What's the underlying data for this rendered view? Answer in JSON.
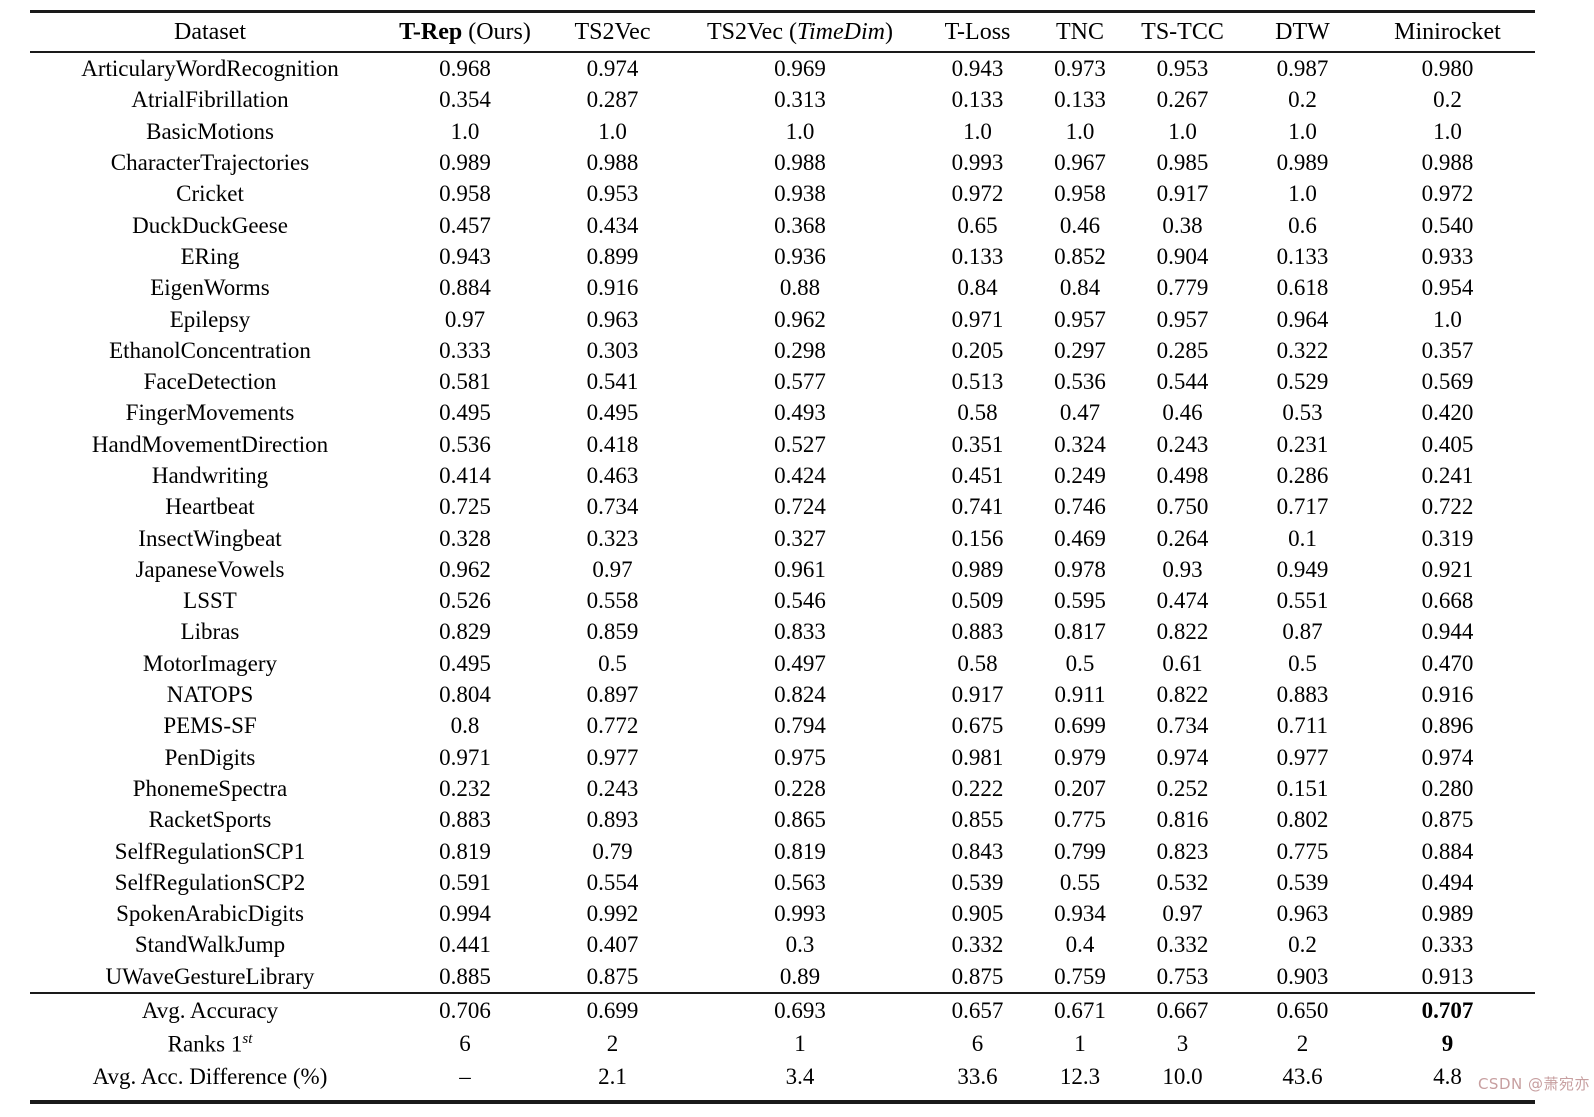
{
  "header": {
    "dataset": "Dataset",
    "trep_main": "T-Rep",
    "trep_suffix": " (Ours)",
    "ts2vec": "TS2Vec",
    "timedim_prefix": "TS2Vec (",
    "timedim_italic": "TimeDim",
    "timedim_suffix": ")",
    "tloss": "T-Loss",
    "tnc": "TNC",
    "tstcc": "TS-TCC",
    "dtw": "DTW",
    "minirocket": "Minirocket"
  },
  "rows": [
    {
      "dataset": "ArticularyWordRecognition",
      "values": [
        "0.968",
        "0.974",
        "0.969",
        "0.943",
        "0.973",
        "0.953",
        "0.987",
        "0.980"
      ]
    },
    {
      "dataset": "AtrialFibrillation",
      "values": [
        "0.354",
        "0.287",
        "0.313",
        "0.133",
        "0.133",
        "0.267",
        "0.2",
        "0.2"
      ]
    },
    {
      "dataset": "BasicMotions",
      "values": [
        "1.0",
        "1.0",
        "1.0",
        "1.0",
        "1.0",
        "1.0",
        "1.0",
        "1.0"
      ]
    },
    {
      "dataset": "CharacterTrajectories",
      "values": [
        "0.989",
        "0.988",
        "0.988",
        "0.993",
        "0.967",
        "0.985",
        "0.989",
        "0.988"
      ]
    },
    {
      "dataset": "Cricket",
      "values": [
        "0.958",
        "0.953",
        "0.938",
        "0.972",
        "0.958",
        "0.917",
        "1.0",
        "0.972"
      ]
    },
    {
      "dataset": "DuckDuckGeese",
      "values": [
        "0.457",
        "0.434",
        "0.368",
        "0.65",
        "0.46",
        "0.38",
        "0.6",
        "0.540"
      ]
    },
    {
      "dataset": "ERing",
      "values": [
        "0.943",
        "0.899",
        "0.936",
        "0.133",
        "0.852",
        "0.904",
        "0.133",
        "0.933"
      ]
    },
    {
      "dataset": "EigenWorms",
      "values": [
        "0.884",
        "0.916",
        "0.88",
        "0.84",
        "0.84",
        "0.779",
        "0.618",
        "0.954"
      ]
    },
    {
      "dataset": "Epilepsy",
      "values": [
        "0.97",
        "0.963",
        "0.962",
        "0.971",
        "0.957",
        "0.957",
        "0.964",
        "1.0"
      ]
    },
    {
      "dataset": "EthanolConcentration",
      "values": [
        "0.333",
        "0.303",
        "0.298",
        "0.205",
        "0.297",
        "0.285",
        "0.322",
        "0.357"
      ]
    },
    {
      "dataset": "FaceDetection",
      "values": [
        "0.581",
        "0.541",
        "0.577",
        "0.513",
        "0.536",
        "0.544",
        "0.529",
        "0.569"
      ]
    },
    {
      "dataset": "FingerMovements",
      "values": [
        "0.495",
        "0.495",
        "0.493",
        "0.58",
        "0.47",
        "0.46",
        "0.53",
        "0.420"
      ]
    },
    {
      "dataset": "HandMovementDirection",
      "values": [
        "0.536",
        "0.418",
        "0.527",
        "0.351",
        "0.324",
        "0.243",
        "0.231",
        "0.405"
      ]
    },
    {
      "dataset": "Handwriting",
      "values": [
        "0.414",
        "0.463",
        "0.424",
        "0.451",
        "0.249",
        "0.498",
        "0.286",
        "0.241"
      ]
    },
    {
      "dataset": "Heartbeat",
      "values": [
        "0.725",
        "0.734",
        "0.724",
        "0.741",
        "0.746",
        "0.750",
        "0.717",
        "0.722"
      ]
    },
    {
      "dataset": "InsectWingbeat",
      "values": [
        "0.328",
        "0.323",
        "0.327",
        "0.156",
        "0.469",
        "0.264",
        "0.1",
        "0.319"
      ]
    },
    {
      "dataset": "JapaneseVowels",
      "values": [
        "0.962",
        "0.97",
        "0.961",
        "0.989",
        "0.978",
        "0.93",
        "0.949",
        "0.921"
      ]
    },
    {
      "dataset": "LSST",
      "values": [
        "0.526",
        "0.558",
        "0.546",
        "0.509",
        "0.595",
        "0.474",
        "0.551",
        "0.668"
      ]
    },
    {
      "dataset": "Libras",
      "values": [
        "0.829",
        "0.859",
        "0.833",
        "0.883",
        "0.817",
        "0.822",
        "0.87",
        "0.944"
      ]
    },
    {
      "dataset": "MotorImagery",
      "values": [
        "0.495",
        "0.5",
        "0.497",
        "0.58",
        "0.5",
        "0.61",
        "0.5",
        "0.470"
      ]
    },
    {
      "dataset": "NATOPS",
      "values": [
        "0.804",
        "0.897",
        "0.824",
        "0.917",
        "0.911",
        "0.822",
        "0.883",
        "0.916"
      ]
    },
    {
      "dataset": "PEMS-SF",
      "values": [
        "0.8",
        "0.772",
        "0.794",
        "0.675",
        "0.699",
        "0.734",
        "0.711",
        "0.896"
      ]
    },
    {
      "dataset": "PenDigits",
      "values": [
        "0.971",
        "0.977",
        "0.975",
        "0.981",
        "0.979",
        "0.974",
        "0.977",
        "0.974"
      ]
    },
    {
      "dataset": "PhonemeSpectra",
      "values": [
        "0.232",
        "0.243",
        "0.228",
        "0.222",
        "0.207",
        "0.252",
        "0.151",
        "0.280"
      ]
    },
    {
      "dataset": "RacketSports",
      "values": [
        "0.883",
        "0.893",
        "0.865",
        "0.855",
        "0.775",
        "0.816",
        "0.802",
        "0.875"
      ]
    },
    {
      "dataset": "SelfRegulationSCP1",
      "values": [
        "0.819",
        "0.79",
        "0.819",
        "0.843",
        "0.799",
        "0.823",
        "0.775",
        "0.884"
      ]
    },
    {
      "dataset": "SelfRegulationSCP2",
      "values": [
        "0.591",
        "0.554",
        "0.563",
        "0.539",
        "0.55",
        "0.532",
        "0.539",
        "0.494"
      ]
    },
    {
      "dataset": "SpokenArabicDigits",
      "values": [
        "0.994",
        "0.992",
        "0.993",
        "0.905",
        "0.934",
        "0.97",
        "0.963",
        "0.989"
      ]
    },
    {
      "dataset": "StandWalkJump",
      "values": [
        "0.441",
        "0.407",
        "0.3",
        "0.332",
        "0.4",
        "0.332",
        "0.2",
        "0.333"
      ]
    },
    {
      "dataset": "UWaveGestureLibrary",
      "values": [
        "0.885",
        "0.875",
        "0.89",
        "0.875",
        "0.759",
        "0.753",
        "0.903",
        "0.913"
      ]
    }
  ],
  "footer_rows": [
    {
      "id": "avg-accuracy",
      "label_main": "Avg. Accuracy",
      "label_sup": "",
      "values": [
        "0.706",
        "0.699",
        "0.693",
        "0.657",
        "0.671",
        "0.667",
        "0.650",
        "0.707"
      ],
      "bold": [
        7
      ]
    },
    {
      "id": "ranks-first",
      "label_main": "Ranks 1",
      "label_sup": "st",
      "values": [
        "6",
        "2",
        "1",
        "6",
        "1",
        "3",
        "2",
        "9"
      ],
      "bold": [
        7
      ]
    },
    {
      "id": "avg-diff",
      "label_main": "Avg. Acc. Difference (%)",
      "label_sup": "",
      "values": [
        "–",
        "2.1",
        "3.4",
        "33.6",
        "12.3",
        "10.0",
        "43.6",
        "4.8"
      ],
      "bold": []
    }
  ],
  "watermark": {
    "text": "CSDN @萧宛亦",
    "color": "#c79fa0"
  }
}
